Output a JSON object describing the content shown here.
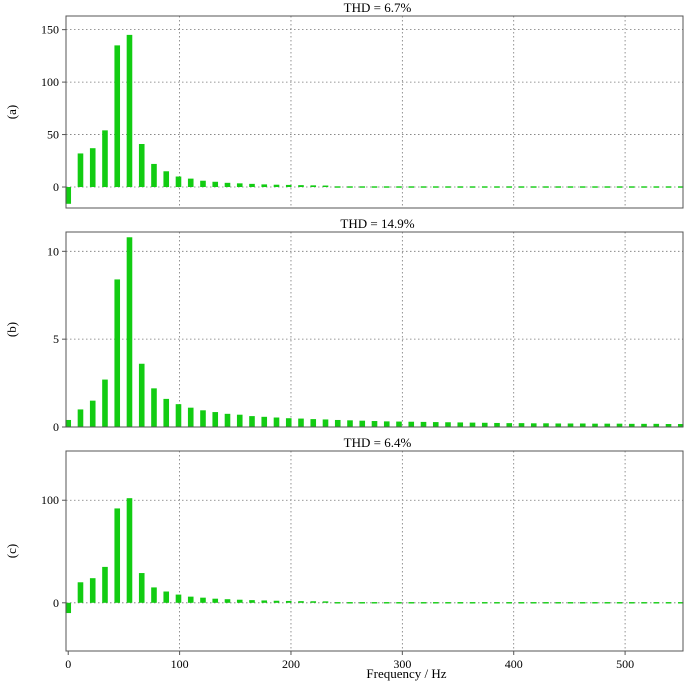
{
  "bar_color": "#12cc12",
  "chart_data": [
    {
      "type": "bar",
      "panel_label": "(a)",
      "title": "THD = 6.7%",
      "xlim": [
        -2,
        552
      ],
      "ylim": [
        -20,
        163
      ],
      "yticks": [
        0,
        50,
        100,
        150
      ],
      "grid": true,
      "x": [
        0,
        11,
        22,
        33,
        44,
        55,
        66,
        77,
        88,
        99,
        110,
        121,
        132,
        143,
        154,
        165,
        176,
        187,
        198,
        209,
        220,
        231,
        242,
        253,
        264,
        275,
        286,
        297,
        308,
        319,
        330,
        341,
        352,
        363,
        374,
        385,
        396,
        407,
        418,
        429,
        440,
        451,
        462,
        473,
        484,
        495,
        506,
        517,
        528,
        539,
        550
      ],
      "values": [
        -16,
        32,
        37,
        54,
        135,
        145,
        41,
        22,
        15,
        10,
        8,
        6,
        5,
        4,
        3.5,
        3,
        2.5,
        2.2,
        2,
        1.8,
        1.6,
        1.4,
        1.3,
        1.2,
        1.1,
        1,
        0.9,
        0.85,
        0.8,
        0.75,
        0.7,
        0.65,
        0.6,
        0.55,
        0.5,
        0.5,
        0.5,
        0.5,
        0.5,
        0.5,
        0.5,
        0.5,
        0.5,
        0.5,
        0.5,
        0.5,
        0.5,
        0.5,
        0.5,
        0.5,
        0.5
      ]
    },
    {
      "type": "bar",
      "panel_label": "(b)",
      "title": "THD = 14.9%",
      "xlim": [
        -2,
        552
      ],
      "ylim": [
        0,
        11.1
      ],
      "yticks": [
        0,
        5,
        10
      ],
      "grid": true,
      "x": [
        0,
        11,
        22,
        33,
        44,
        55,
        66,
        77,
        88,
        99,
        110,
        121,
        132,
        143,
        154,
        165,
        176,
        187,
        198,
        209,
        220,
        231,
        242,
        253,
        264,
        275,
        286,
        297,
        308,
        319,
        330,
        341,
        352,
        363,
        374,
        385,
        396,
        407,
        418,
        429,
        440,
        451,
        462,
        473,
        484,
        495,
        506,
        517,
        528,
        539,
        550
      ],
      "values": [
        0.4,
        1.0,
        1.5,
        2.7,
        8.4,
        10.8,
        3.6,
        2.2,
        1.6,
        1.3,
        1.1,
        0.95,
        0.85,
        0.75,
        0.7,
        0.62,
        0.58,
        0.54,
        0.5,
        0.48,
        0.45,
        0.43,
        0.4,
        0.38,
        0.36,
        0.34,
        0.32,
        0.31,
        0.3,
        0.29,
        0.28,
        0.27,
        0.26,
        0.25,
        0.24,
        0.23,
        0.22,
        0.22,
        0.21,
        0.21,
        0.2,
        0.2,
        0.2,
        0.19,
        0.19,
        0.19,
        0.18,
        0.18,
        0.18,
        0.17,
        0.17
      ]
    },
    {
      "type": "bar",
      "panel_label": "(c)",
      "title": "THD = 6.4%",
      "xlim": [
        -2,
        552
      ],
      "ylim": [
        -47,
        148
      ],
      "yticks": [
        0,
        100
      ],
      "xticks": [
        0,
        100,
        200,
        300,
        400,
        500
      ],
      "xlabel": "Frequency / Hz",
      "grid": true,
      "x": [
        0,
        11,
        22,
        33,
        44,
        55,
        66,
        77,
        88,
        99,
        110,
        121,
        132,
        143,
        154,
        165,
        176,
        187,
        198,
        209,
        220,
        231,
        242,
        253,
        264,
        275,
        286,
        297,
        308,
        319,
        330,
        341,
        352,
        363,
        374,
        385,
        396,
        407,
        418,
        429,
        440,
        451,
        462,
        473,
        484,
        495,
        506,
        517,
        528,
        539,
        550
      ],
      "values": [
        -10,
        20,
        24,
        35,
        92,
        102,
        29,
        15,
        11,
        8,
        6,
        5,
        4,
        3.5,
        3,
        2.6,
        2.3,
        2,
        1.8,
        1.6,
        1.5,
        1.4,
        1.3,
        1.2,
        1.1,
        1,
        0.9,
        0.85,
        0.8,
        0.75,
        0.7,
        0.65,
        0.6,
        0.55,
        0.5,
        0.5,
        0.5,
        0.5,
        0.5,
        0.5,
        0.5,
        0.5,
        0.5,
        0.5,
        0.5,
        0.5,
        0.5,
        0.5,
        0.5,
        0.5,
        0.5
      ]
    }
  ]
}
